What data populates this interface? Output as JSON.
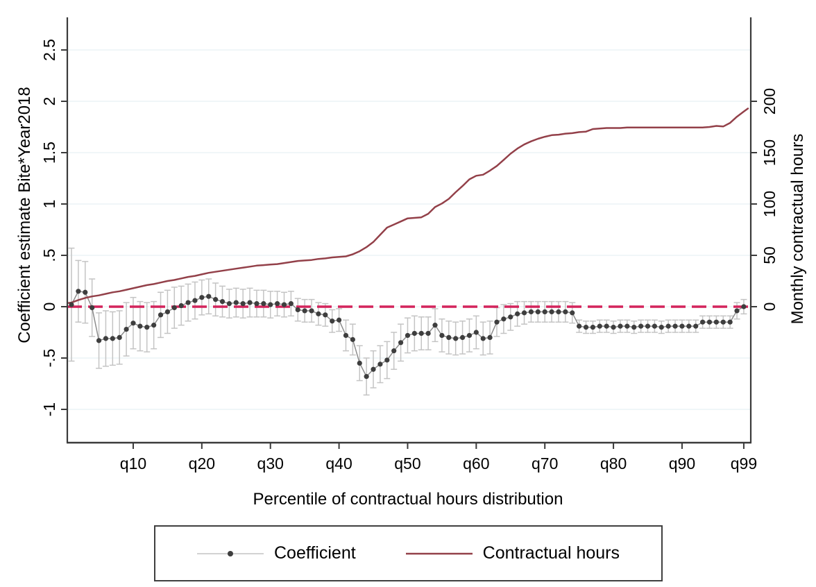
{
  "chart_data": {
    "type": "line",
    "title": "",
    "x_axis_label": "Percentile of contractual hours distribution",
    "x_ticks": [
      {
        "q": 10,
        "label": "q10"
      },
      {
        "q": 20,
        "label": "q20"
      },
      {
        "q": 30,
        "label": "q30"
      },
      {
        "q": 40,
        "label": "q40"
      },
      {
        "q": 50,
        "label": "q50"
      },
      {
        "q": 60,
        "label": "q60"
      },
      {
        "q": 70,
        "label": "q70"
      },
      {
        "q": 80,
        "label": "q80"
      },
      {
        "q": 90,
        "label": "q90"
      },
      {
        "q": 99,
        "label": "q99"
      }
    ],
    "left_axis": {
      "label": "Coefficient estimate Bite*Year2018",
      "ticks": [
        -1,
        -0.5,
        0,
        0.5,
        1,
        1.5,
        2,
        2.5
      ],
      "tick_labels": [
        "-1",
        "-.5",
        "0",
        ".5",
        "1",
        "1.5",
        "2",
        "2.5"
      ],
      "range": [
        -1.32,
        2.82
      ]
    },
    "right_axis": {
      "label": "Monthly contractual hours",
      "ticks": [
        0,
        50,
        100,
        150,
        200
      ],
      "tick_labels": [
        "0",
        "50",
        "100",
        "150",
        "200"
      ]
    },
    "zero_line": {
      "y": 0,
      "style": "dashed"
    },
    "grid": true,
    "legend_position": "bottom",
    "series": [
      {
        "name": "Coefficient",
        "type": "scatter-errorbar",
        "x_percentiles_start": 1,
        "y": [
          0.02,
          0.15,
          0.14,
          -0.01,
          -0.33,
          -0.31,
          -0.31,
          -0.3,
          -0.22,
          -0.16,
          -0.19,
          -0.2,
          -0.18,
          -0.08,
          -0.05,
          -0.01,
          0.01,
          0.04,
          0.06,
          0.09,
          0.1,
          0.07,
          0.05,
          0.03,
          0.04,
          0.03,
          0.04,
          0.03,
          0.03,
          0.02,
          0.03,
          0.02,
          0.03,
          -0.03,
          -0.04,
          -0.04,
          -0.07,
          -0.08,
          -0.14,
          -0.13,
          -0.28,
          -0.32,
          -0.55,
          -0.68,
          -0.61,
          -0.56,
          -0.52,
          -0.43,
          -0.35,
          -0.28,
          -0.26,
          -0.26,
          -0.26,
          -0.18,
          -0.28,
          -0.3,
          -0.31,
          -0.3,
          -0.28,
          -0.25,
          -0.31,
          -0.3,
          -0.15,
          -0.12,
          -0.1,
          -0.07,
          -0.06,
          -0.05,
          -0.05,
          -0.05,
          -0.05,
          -0.05,
          -0.05,
          -0.06,
          -0.19,
          -0.2,
          -0.2,
          -0.19,
          -0.19,
          -0.2,
          -0.19,
          -0.19,
          -0.2,
          -0.19,
          -0.19,
          -0.19,
          -0.2,
          -0.19,
          -0.19,
          -0.19,
          -0.19,
          -0.19,
          -0.15,
          -0.15,
          -0.15,
          -0.15,
          -0.15,
          -0.04,
          0.0
        ],
        "ci_half_width": [
          0.55,
          0.3,
          0.3,
          0.28,
          0.27,
          0.27,
          0.26,
          0.26,
          0.26,
          0.25,
          0.24,
          0.24,
          0.23,
          0.22,
          0.21,
          0.2,
          0.19,
          0.18,
          0.18,
          0.17,
          0.17,
          0.16,
          0.15,
          0.14,
          0.14,
          0.14,
          0.14,
          0.13,
          0.13,
          0.13,
          0.12,
          0.12,
          0.12,
          0.11,
          0.11,
          0.11,
          0.11,
          0.11,
          0.11,
          0.11,
          0.15,
          0.15,
          0.17,
          0.18,
          0.18,
          0.18,
          0.18,
          0.18,
          0.18,
          0.17,
          0.17,
          0.16,
          0.16,
          0.16,
          0.16,
          0.16,
          0.16,
          0.16,
          0.16,
          0.16,
          0.16,
          0.16,
          0.14,
          0.14,
          0.13,
          0.12,
          0.11,
          0.1,
          0.1,
          0.1,
          0.1,
          0.1,
          0.1,
          0.1,
          0.06,
          0.06,
          0.06,
          0.06,
          0.06,
          0.06,
          0.06,
          0.06,
          0.06,
          0.06,
          0.06,
          0.06,
          0.06,
          0.06,
          0.06,
          0.06,
          0.06,
          0.06,
          0.06,
          0.06,
          0.06,
          0.06,
          0.06,
          0.08,
          0.07
        ]
      },
      {
        "name": "Contractual hours",
        "type": "line",
        "x_percentiles_start": 1,
        "y": [
          4,
          6.5,
          8.5,
          10,
          11,
          12.5,
          14,
          15,
          16.5,
          18,
          19.5,
          21,
          22,
          23.5,
          25,
          26,
          27.5,
          29,
          30,
          31.5,
          33,
          34,
          35,
          36,
          37,
          38,
          39,
          40,
          40.5,
          41,
          41.5,
          42.5,
          43.5,
          44.5,
          45,
          45.5,
          46.5,
          47,
          48,
          48.5,
          49,
          51,
          54,
          58,
          63,
          70,
          77,
          80,
          83,
          86,
          86.5,
          87,
          90.5,
          97,
          100.5,
          105,
          111.5,
          117.5,
          124,
          127.5,
          128.5,
          132.5,
          137,
          143,
          149,
          154,
          158,
          161,
          163.5,
          165.5,
          167,
          167.5,
          168.5,
          169,
          170,
          170.5,
          173,
          173.5,
          174,
          174,
          174,
          174.5,
          174.5,
          174.5,
          174.5,
          174.5,
          174.5,
          174.5,
          174.5,
          174.5,
          174.5,
          174.5,
          174.5,
          175,
          176,
          175.5,
          179,
          185,
          190
        ],
        "left_edge_point": {
          "x": 0.45,
          "y": 3.5
        },
        "right_edge_point": {
          "x": 99.6,
          "y": 193
        }
      }
    ],
    "legend": {
      "items": [
        {
          "label": "Coefficient",
          "marker": "gray-line-with-dot"
        },
        {
          "label": "Contractual hours",
          "marker": "maroon-line"
        }
      ]
    },
    "colors": {
      "coefficient_dot": "#3e3e3e",
      "coefficient_line": "#8c8c8c",
      "error_bar": "#c4c4c4",
      "hours_line": "#934049",
      "zero_line": "#d3245c",
      "gridline": "#e8f1f3",
      "axis": "#3a3a3a",
      "legend_border": "#3f3f3f",
      "background": "#ffffff"
    }
  }
}
